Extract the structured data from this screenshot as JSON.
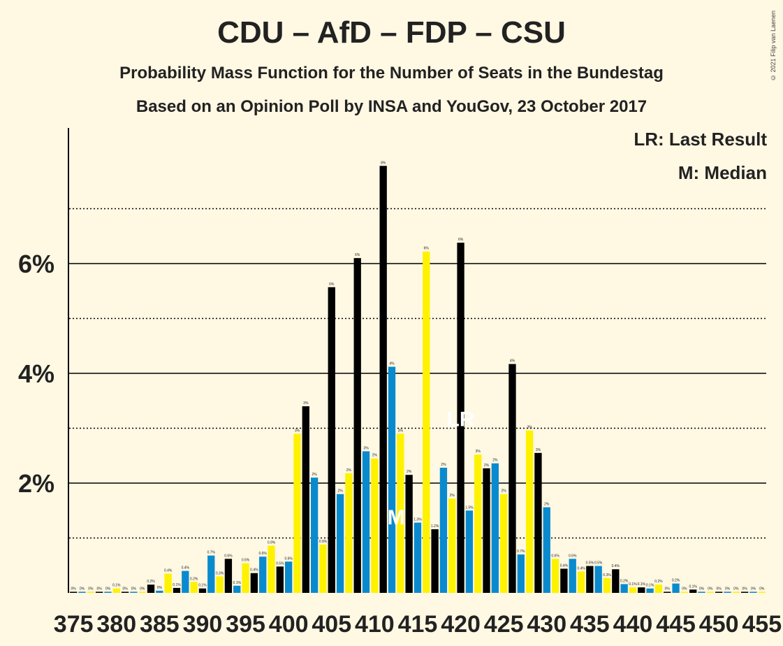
{
  "title": "CDU – AfD – FDP – CSU",
  "subtitle1": "Probability Mass Function for the Number of Seats in the Bundestag",
  "subtitle2": "Based on an Opinion Poll by INSA and YouGov, 23 October 2017",
  "copyright": "© 2021 Filip van Laenen",
  "legend": {
    "lr": "LR: Last Result",
    "m": "M: Median"
  },
  "colors": {
    "background": "#FFF8E3",
    "cdu": "#000000",
    "blue": "#0A8ACE",
    "yellow": "#FFF200"
  },
  "chart_data": {
    "type": "bar",
    "ylabel_ticks": [
      "2%",
      "4%",
      "6%"
    ],
    "ylim": [
      0,
      8.5
    ],
    "x_tick_labels": [
      "375",
      "380",
      "385",
      "390",
      "395",
      "400",
      "405",
      "410",
      "415",
      "420",
      "425",
      "430",
      "435",
      "440",
      "445",
      "450",
      "455"
    ],
    "last_result_seat": 420,
    "median_seat": 411,
    "color_cycle": [
      "black",
      "blue",
      "yellow"
    ],
    "color_cycle_start_seat": 375,
    "bars": [
      {
        "x": 375,
        "v": 0.02,
        "label": "0%"
      },
      {
        "x": 376,
        "v": 0.02,
        "label": "0%"
      },
      {
        "x": 377,
        "v": 0.02,
        "label": "0%"
      },
      {
        "x": 378,
        "v": 0.02,
        "label": "0%"
      },
      {
        "x": 379,
        "v": 0.02,
        "label": "0%"
      },
      {
        "x": 380,
        "v": 0.08,
        "label": "0.1%"
      },
      {
        "x": 381,
        "v": 0.02,
        "label": "0%"
      },
      {
        "x": 382,
        "v": 0.02,
        "label": "0%"
      },
      {
        "x": 383,
        "v": 0.02,
        "label": "0%"
      },
      {
        "x": 384,
        "v": 0.15,
        "label": "0.2%"
      },
      {
        "x": 385,
        "v": 0.04,
        "label": "0%"
      },
      {
        "x": 386,
        "v": 0.35,
        "label": "0.4%"
      },
      {
        "x": 387,
        "v": 0.09,
        "label": "0.1%"
      },
      {
        "x": 388,
        "v": 0.4,
        "label": "0.4%"
      },
      {
        "x": 389,
        "v": 0.2,
        "label": "0.2%"
      },
      {
        "x": 390,
        "v": 0.08,
        "label": "0.1%"
      },
      {
        "x": 391,
        "v": 0.68,
        "label": "0.7%"
      },
      {
        "x": 392,
        "v": 0.3,
        "label": "0.3%"
      },
      {
        "x": 393,
        "v": 0.62,
        "label": "0.6%"
      },
      {
        "x": 394,
        "v": 0.13,
        "label": "0.1%"
      },
      {
        "x": 395,
        "v": 0.54,
        "label": "0.5%"
      },
      {
        "x": 396,
        "v": 0.36,
        "label": "0.4%"
      },
      {
        "x": 397,
        "v": 0.66,
        "label": "0.6%"
      },
      {
        "x": 398,
        "v": 0.86,
        "label": "0.9%"
      },
      {
        "x": 399,
        "v": 0.48,
        "label": "0.5%"
      },
      {
        "x": 400,
        "v": 0.57,
        "label": "0.6%"
      },
      {
        "x": 401,
        "v": 2.9,
        "label": "3%"
      },
      {
        "x": 402,
        "v": 3.4,
        "label": "3%"
      },
      {
        "x": 403,
        "v": 2.1,
        "label": "2%"
      },
      {
        "x": 404,
        "v": 0.88,
        "label": "0.9%"
      },
      {
        "x": 405,
        "v": 5.57,
        "label": "6%"
      },
      {
        "x": 406,
        "v": 1.8,
        "label": "2%"
      },
      {
        "x": 407,
        "v": 2.18,
        "label": "2%"
      },
      {
        "x": 408,
        "v": 6.1,
        "label": "6%"
      },
      {
        "x": 409,
        "v": 2.58,
        "label": "3%"
      },
      {
        "x": 410,
        "v": 2.45,
        "label": "2%"
      },
      {
        "x": 411,
        "v": 7.78,
        "label": "8%"
      },
      {
        "x": 412,
        "v": 4.12,
        "label": "4%"
      },
      {
        "x": 413,
        "v": 2.9,
        "label": "3%"
      },
      {
        "x": 414,
        "v": 2.15,
        "label": "2%"
      },
      {
        "x": 415,
        "v": 1.28,
        "label": "1.3%"
      },
      {
        "x": 416,
        "v": 6.22,
        "label": "6%"
      },
      {
        "x": 417,
        "v": 1.16,
        "label": "1.2%"
      },
      {
        "x": 418,
        "v": 2.28,
        "label": "2%"
      },
      {
        "x": 419,
        "v": 1.72,
        "label": "2%"
      },
      {
        "x": 420,
        "v": 6.38,
        "label": "6%"
      },
      {
        "x": 421,
        "v": 1.5,
        "label": "1.5%"
      },
      {
        "x": 422,
        "v": 2.52,
        "label": "3%"
      },
      {
        "x": 423,
        "v": 2.27,
        "label": "2%"
      },
      {
        "x": 424,
        "v": 2.36,
        "label": "2%"
      },
      {
        "x": 425,
        "v": 1.8,
        "label": "2%"
      },
      {
        "x": 426,
        "v": 4.17,
        "label": "4%"
      },
      {
        "x": 427,
        "v": 0.7,
        "label": "0.7%"
      },
      {
        "x": 428,
        "v": 2.96,
        "label": "3%"
      },
      {
        "x": 429,
        "v": 2.55,
        "label": "3%"
      },
      {
        "x": 430,
        "v": 1.56,
        "label": "2%"
      },
      {
        "x": 431,
        "v": 0.62,
        "label": "0.6%"
      },
      {
        "x": 432,
        "v": 0.44,
        "label": "0.4%"
      },
      {
        "x": 433,
        "v": 0.62,
        "label": "0.6%"
      },
      {
        "x": 434,
        "v": 0.39,
        "label": "0.4%"
      },
      {
        "x": 435,
        "v": 0.49,
        "label": "0.5%"
      },
      {
        "x": 436,
        "v": 0.49,
        "label": "0.5%"
      },
      {
        "x": 437,
        "v": 0.27,
        "label": "0.3%"
      },
      {
        "x": 438,
        "v": 0.43,
        "label": "0.4%"
      },
      {
        "x": 439,
        "v": 0.16,
        "label": "0.2%"
      },
      {
        "x": 440,
        "v": 0.1,
        "label": "0.1%"
      },
      {
        "x": 441,
        "v": 0.1,
        "label": "0.1%"
      },
      {
        "x": 442,
        "v": 0.08,
        "label": "0.1%"
      },
      {
        "x": 443,
        "v": 0.15,
        "label": "0.2%"
      },
      {
        "x": 444,
        "v": 0.02,
        "label": "0%"
      },
      {
        "x": 445,
        "v": 0.17,
        "label": "0.2%"
      },
      {
        "x": 446,
        "v": 0.02,
        "label": "0%"
      },
      {
        "x": 447,
        "v": 0.06,
        "label": "0.1%"
      },
      {
        "x": 448,
        "v": 0.02,
        "label": "0%"
      },
      {
        "x": 449,
        "v": 0.02,
        "label": "0%"
      },
      {
        "x": 450,
        "v": 0.02,
        "label": "0%"
      },
      {
        "x": 451,
        "v": 0.02,
        "label": "0%"
      },
      {
        "x": 452,
        "v": 0.02,
        "label": "0%"
      },
      {
        "x": 453,
        "v": 0.02,
        "label": "0%"
      },
      {
        "x": 454,
        "v": 0.02,
        "label": "0%"
      },
      {
        "x": 455,
        "v": 0.02,
        "label": "0%"
      }
    ]
  }
}
